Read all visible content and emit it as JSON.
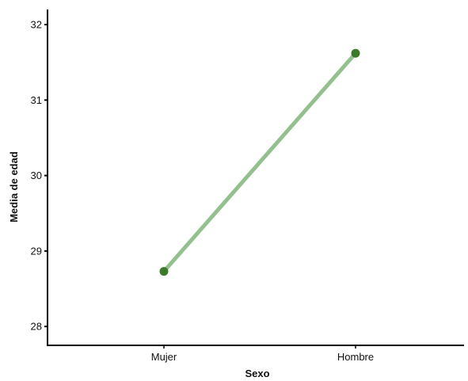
{
  "chart_data": {
    "type": "line",
    "title": "",
    "xlabel": "Sexo",
    "ylabel": "Media de edad",
    "categories": [
      "Mujer",
      "Hombre"
    ],
    "values": [
      28.73,
      31.62
    ],
    "ylim": [
      27.75,
      32.2
    ],
    "yticks": [
      28,
      29,
      30,
      31,
      32
    ],
    "ytick_labels": [
      "28",
      "29",
      "30",
      "31",
      "32"
    ],
    "grid": false,
    "legend": "none",
    "colors": {
      "line": "#94c08f",
      "marker": "#3a7a2a",
      "axis": "#000000"
    }
  }
}
